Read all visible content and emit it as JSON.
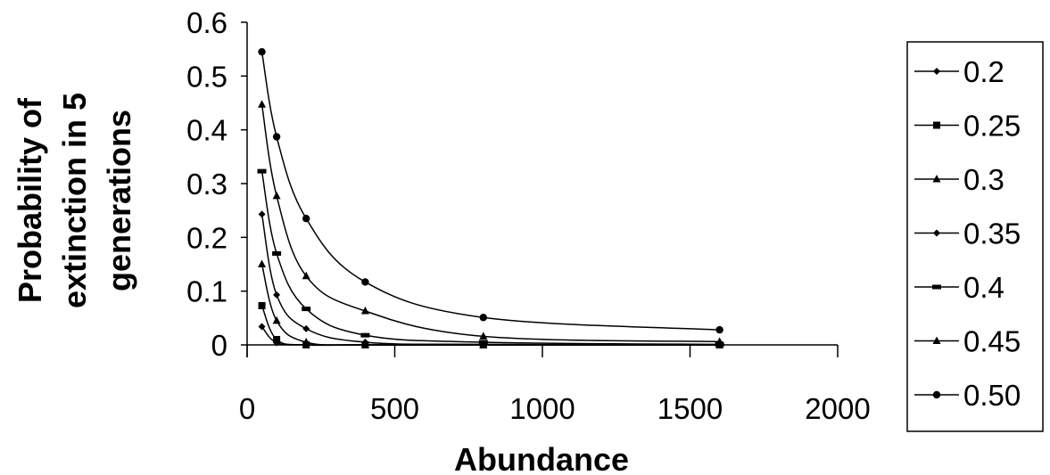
{
  "chart_data": {
    "type": "line",
    "title": "",
    "xlabel": "Abundance",
    "ylabel_lines": [
      "Probability of",
      "extinction in 5",
      "generations"
    ],
    "xlim": [
      0,
      2000
    ],
    "ylim": [
      0,
      0.6
    ],
    "xticks": [
      "0",
      "500",
      "1000",
      "1500",
      "2000"
    ],
    "yticks": [
      "0",
      "0.1",
      "0.2",
      "0.3",
      "0.4",
      "0.5",
      "0.6"
    ],
    "grid": false,
    "legend_position": "right",
    "x": [
      50,
      100,
      200,
      400,
      800,
      1600
    ],
    "series": [
      {
        "name": "0.2",
        "marker": "diamond",
        "values": [
          0.034,
          0.004,
          0.0,
          0.0,
          0.0,
          0.0
        ]
      },
      {
        "name": "0.25",
        "marker": "square",
        "values": [
          0.073,
          0.01,
          0.0,
          0.0,
          0.0,
          0.0
        ]
      },
      {
        "name": "0.3",
        "marker": "triangle",
        "values": [
          0.15,
          0.045,
          0.005,
          0.0,
          0.0,
          0.0
        ]
      },
      {
        "name": "0.35",
        "marker": "diamond",
        "values": [
          0.243,
          0.093,
          0.03,
          0.005,
          0.001,
          0.0
        ]
      },
      {
        "name": "0.4",
        "marker": "dash",
        "values": [
          0.323,
          0.17,
          0.067,
          0.018,
          0.005,
          0.001
        ]
      },
      {
        "name": "0.45",
        "marker": "triangle",
        "values": [
          0.447,
          0.277,
          0.128,
          0.063,
          0.016,
          0.006
        ]
      },
      {
        "name": "0.50",
        "marker": "circle",
        "values": [
          0.545,
          0.387,
          0.235,
          0.117,
          0.051,
          0.028
        ]
      }
    ]
  }
}
